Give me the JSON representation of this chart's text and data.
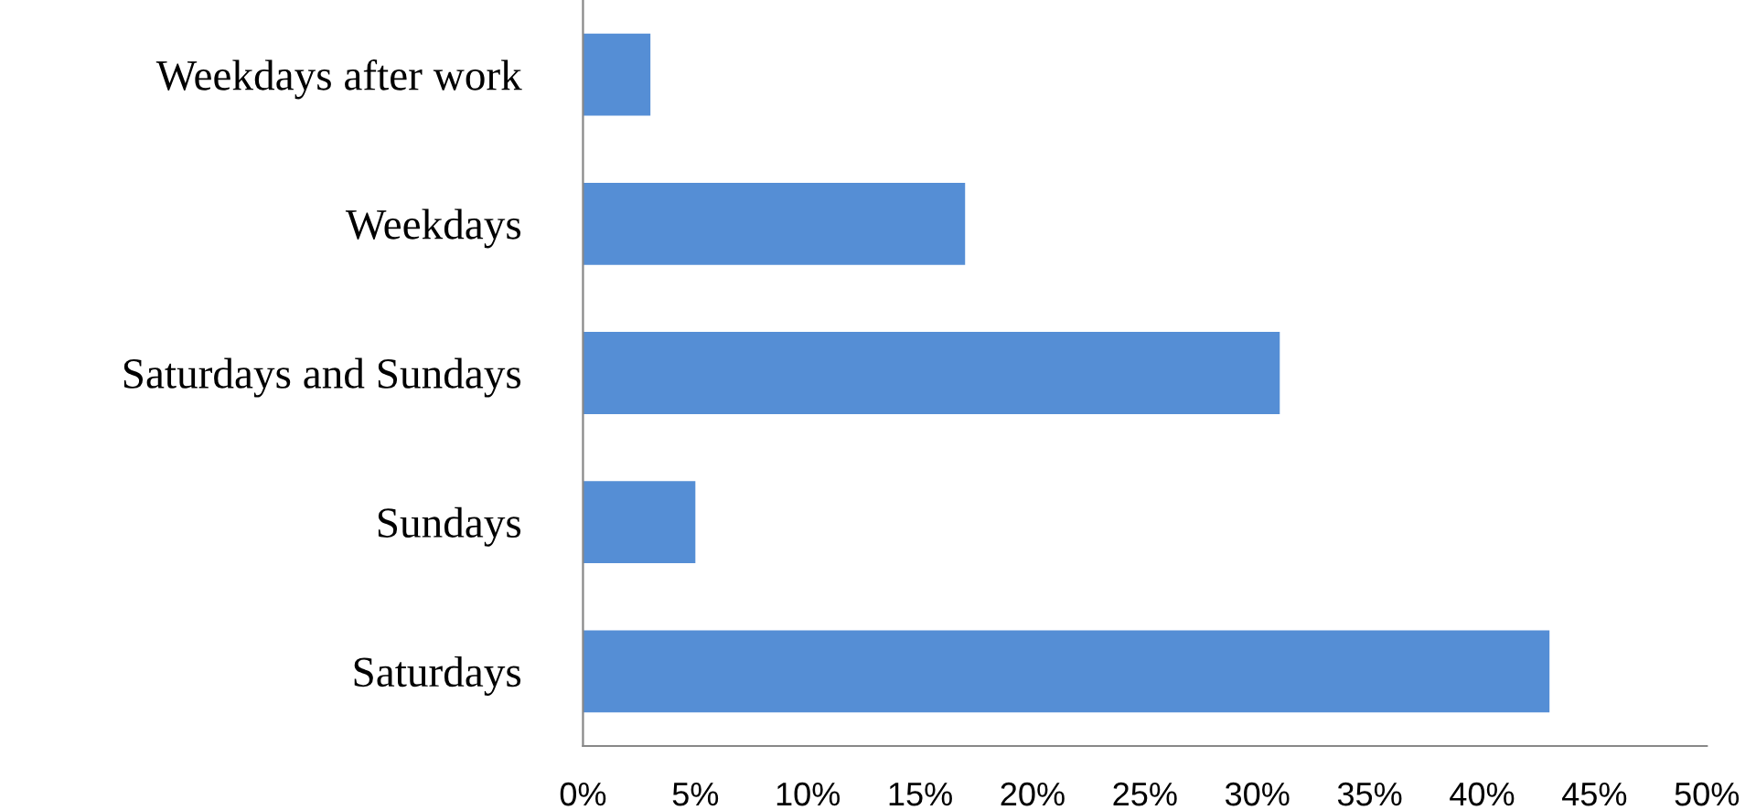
{
  "chart_data": {
    "type": "bar",
    "orientation": "horizontal",
    "categories": [
      "Weekdays after work",
      "Weekdays",
      "Saturdays and Sundays",
      "Sundays",
      "Saturdays"
    ],
    "series": [
      {
        "color": "#558ed5",
        "values": [
          3,
          17,
          31,
          5,
          43
        ]
      }
    ],
    "xlim": [
      0,
      50
    ],
    "xticks": [
      {
        "value": 0,
        "label": "0%"
      },
      {
        "value": 5,
        "label": "5%"
      },
      {
        "value": 10,
        "label": "10%"
      },
      {
        "value": 15,
        "label": "15%"
      },
      {
        "value": 20,
        "label": "20%"
      },
      {
        "value": 25,
        "label": "25%"
      },
      {
        "value": 30,
        "label": "30%"
      },
      {
        "value": 35,
        "label": "35%"
      },
      {
        "value": 40,
        "label": "40%"
      },
      {
        "value": 45,
        "label": "45%"
      },
      {
        "value": 50,
        "label": "50%"
      }
    ],
    "grid": false
  }
}
